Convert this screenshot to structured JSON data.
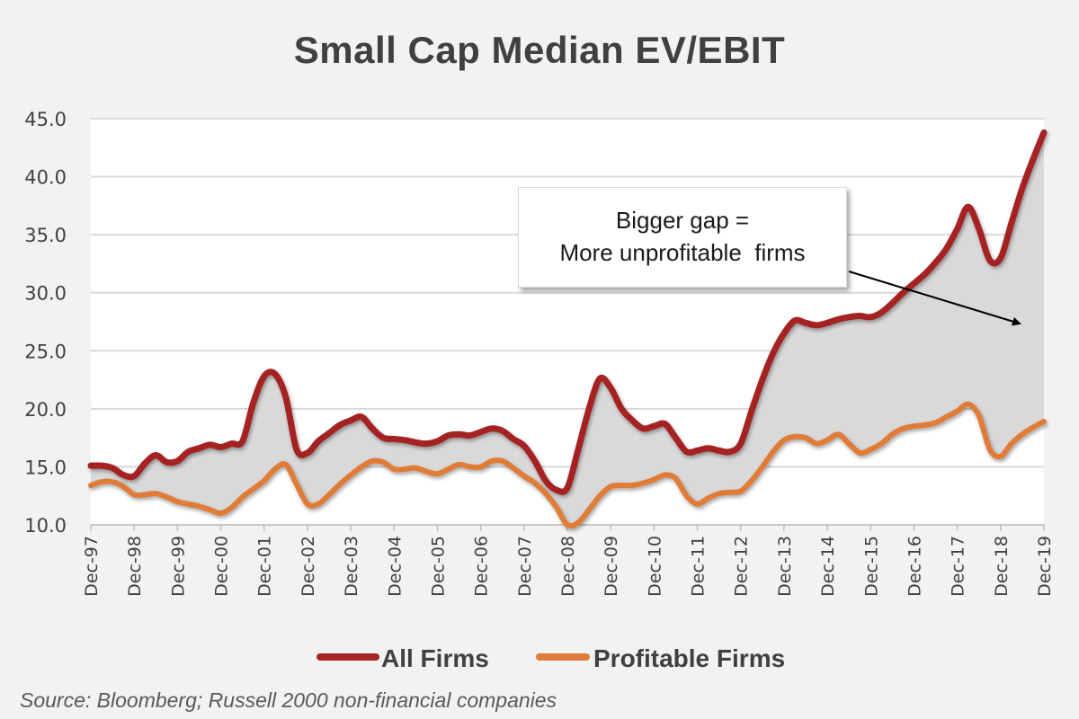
{
  "chart_data": {
    "type": "area",
    "title": "Small Cap Median EV/EBIT",
    "xlabel": "",
    "ylabel": "",
    "ylim": [
      10.0,
      45.0
    ],
    "yticks": [
      "10.0",
      "15.0",
      "20.0",
      "25.0",
      "30.0",
      "35.0",
      "40.0",
      "45.0"
    ],
    "ytick_values": [
      10,
      15,
      20,
      25,
      30,
      35,
      40,
      45
    ],
    "categories": [
      "Dec-97",
      "Dec-98",
      "Dec-99",
      "Dec-00",
      "Dec-01",
      "Dec-02",
      "Dec-03",
      "Dec-04",
      "Dec-05",
      "Dec-06",
      "Dec-07",
      "Dec-08",
      "Dec-09",
      "Dec-10",
      "Dec-11",
      "Dec-12",
      "Dec-13",
      "Dec-14",
      "Dec-15",
      "Dec-16",
      "Dec-17",
      "Dec-18",
      "Dec-19"
    ],
    "grid": true,
    "legend_position": "bottom",
    "x_years_since_dec97": [
      0,
      0.25,
      0.5,
      0.75,
      1,
      1.25,
      1.5,
      1.75,
      2,
      2.25,
      2.5,
      2.75,
      3,
      3.25,
      3.5,
      3.75,
      4,
      4.25,
      4.5,
      4.75,
      5,
      5.25,
      5.5,
      5.75,
      6,
      6.25,
      6.5,
      6.75,
      7,
      7.25,
      7.5,
      7.75,
      8,
      8.25,
      8.5,
      8.75,
      9,
      9.25,
      9.5,
      9.75,
      10,
      10.25,
      10.5,
      10.75,
      11,
      11.25,
      11.5,
      11.75,
      12,
      12.25,
      12.5,
      12.75,
      13,
      13.25,
      13.5,
      13.75,
      14,
      14.25,
      14.5,
      14.75,
      15,
      15.25,
      15.5,
      15.75,
      16,
      16.25,
      16.5,
      16.75,
      17,
      17.25,
      17.5,
      17.75,
      18,
      18.25,
      18.5,
      18.75,
      19,
      19.25,
      19.5,
      19.75,
      20,
      20.25,
      20.5,
      20.75,
      21,
      21.25,
      21.5,
      21.75,
      22
    ],
    "series": [
      {
        "name": "All Firms",
        "color": "#a52424",
        "values": [
          15.1,
          15.1,
          14.9,
          14.3,
          14.2,
          15.3,
          16.0,
          15.4,
          15.5,
          16.3,
          16.6,
          16.9,
          16.7,
          17.0,
          17.2,
          20.5,
          22.8,
          23.0,
          21.0,
          16.5,
          16.2,
          17.2,
          17.9,
          18.6,
          19.0,
          19.3,
          18.3,
          17.5,
          17.4,
          17.3,
          17.1,
          17.0,
          17.2,
          17.7,
          17.8,
          17.7,
          18.0,
          18.3,
          18.1,
          17.4,
          16.8,
          15.5,
          13.8,
          13.0,
          13.2,
          16.5,
          20.0,
          22.6,
          21.8,
          20.0,
          19.0,
          18.3,
          18.5,
          18.7,
          17.5,
          16.3,
          16.4,
          16.6,
          16.4,
          16.3,
          17.0,
          19.8,
          22.5,
          24.8,
          26.5,
          27.6,
          27.4,
          27.2,
          27.4,
          27.7,
          27.9,
          28.0,
          27.9,
          28.3,
          29.1,
          30.0,
          30.8,
          31.6,
          32.6,
          33.8,
          35.5,
          37.4,
          35.5,
          32.8,
          33.0,
          36.0,
          39.0,
          41.5,
          43.8
        ]
      },
      {
        "name": "Profitable Firms",
        "color": "#e07b39",
        "values": [
          13.4,
          13.7,
          13.7,
          13.3,
          12.6,
          12.6,
          12.7,
          12.4,
          12.0,
          11.8,
          11.6,
          11.3,
          11.0,
          11.5,
          12.4,
          13.1,
          13.8,
          14.8,
          15.2,
          13.5,
          11.8,
          11.8,
          12.6,
          13.5,
          14.3,
          15.0,
          15.5,
          15.4,
          14.8,
          14.8,
          14.9,
          14.6,
          14.4,
          14.8,
          15.2,
          15.0,
          15.0,
          15.5,
          15.5,
          14.9,
          14.2,
          13.6,
          12.7,
          11.5,
          10.0,
          10.2,
          11.3,
          12.5,
          13.3,
          13.4,
          13.4,
          13.6,
          13.9,
          14.3,
          14.0,
          12.5,
          11.8,
          12.3,
          12.7,
          12.8,
          12.9,
          13.8,
          15.0,
          16.3,
          17.3,
          17.6,
          17.5,
          17.0,
          17.3,
          17.8,
          17.0,
          16.2,
          16.5,
          17.0,
          17.8,
          18.3,
          18.5,
          18.6,
          18.8,
          19.3,
          19.8,
          20.4,
          19.4,
          16.5,
          15.9,
          17.0,
          17.8,
          18.4,
          18.9
        ]
      }
    ],
    "annotation": {
      "lines": [
        "Bigger gap =",
        "More unprofitable  firms"
      ],
      "arrow": "points to shaded gap near Dec-18"
    },
    "fill_between": {
      "color": "#d9d9d9",
      "description": "gap between All Firms and Profitable Firms"
    },
    "source": "Source:  Bloomberg; Russell 2000 non-financial companies"
  }
}
